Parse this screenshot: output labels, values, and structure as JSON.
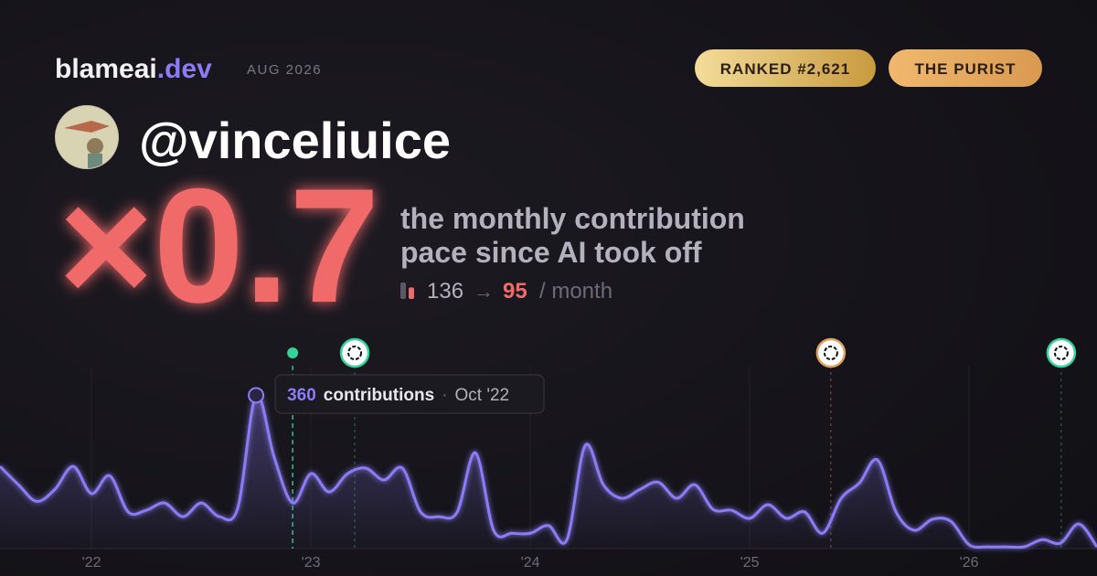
{
  "header": {
    "brand": "blameai",
    "brand_suffix": ".dev",
    "date": "AUG 2026",
    "badges": [
      "RANKED #2,621",
      "THE PURIST"
    ]
  },
  "profile": {
    "handle": "@vinceliuice"
  },
  "summary": {
    "multiplier": "×0.7",
    "description": [
      "the monthly contribution",
      "pace since AI took off"
    ],
    "before": 136,
    "arrow": "→",
    "after": 95,
    "unit": "/ month"
  },
  "chart_data": {
    "type": "line",
    "xlim": [
      2021.583,
      2026.583
    ],
    "ylim": [
      0,
      380
    ],
    "xticks": [
      {
        "value": 2022,
        "label": "'22"
      },
      {
        "value": 2023,
        "label": "'23"
      },
      {
        "value": 2024,
        "label": "'24"
      },
      {
        "value": 2025,
        "label": "'25"
      },
      {
        "value": 2026,
        "label": "'26"
      }
    ],
    "grid": true,
    "x": [
      2021.583,
      2021.667,
      2021.75,
      2021.833,
      2021.917,
      2022,
      2022.083,
      2022.167,
      2022.25,
      2022.333,
      2022.417,
      2022.5,
      2022.583,
      2022.667,
      2022.75,
      2022.833,
      2022.917,
      2023,
      2023.083,
      2023.167,
      2023.25,
      2023.333,
      2023.417,
      2023.5,
      2023.583,
      2023.667,
      2023.75,
      2023.833,
      2023.917,
      2024,
      2024.083,
      2024.167,
      2024.25,
      2024.333,
      2024.417,
      2024.5,
      2024.583,
      2024.667,
      2024.75,
      2024.833,
      2024.917,
      2025,
      2025.083,
      2025.167,
      2025.25,
      2025.333,
      2025.417,
      2025.5,
      2025.583,
      2025.667,
      2025.75,
      2025.833,
      2025.917,
      2026,
      2026.083,
      2026.167,
      2026.25,
      2026.333,
      2026.417,
      2026.5,
      2026.583
    ],
    "series": [
      {
        "color": "#8b7cf6",
        "values": [
          193,
          150,
          111,
          139,
          193,
          129,
          171,
          86,
          90,
          107,
          75,
          107,
          75,
          96,
          360,
          214,
          107,
          176,
          133,
          176,
          189,
          161,
          189,
          86,
          75,
          86,
          225,
          43,
          36,
          36,
          54,
          21,
          242,
          150,
          118,
          139,
          156,
          118,
          150,
          92,
          90,
          71,
          103,
          71,
          86,
          36,
          118,
          154,
          208,
          86,
          43,
          69,
          64,
          9,
          4,
          4,
          4,
          21,
          13,
          58,
          4
        ]
      }
    ],
    "events": [
      {
        "x": 2022.917,
        "color": "#34d399"
      },
      {
        "x": 2023.2,
        "color": "#34d399"
      },
      {
        "x": 2025.37,
        "color": "#e0a060"
      },
      {
        "x": 2026.42,
        "color": "#34d399"
      }
    ],
    "tooltip": {
      "x": 2022.75,
      "value": 360,
      "unit": "contributions",
      "date": "Oct '22"
    }
  }
}
